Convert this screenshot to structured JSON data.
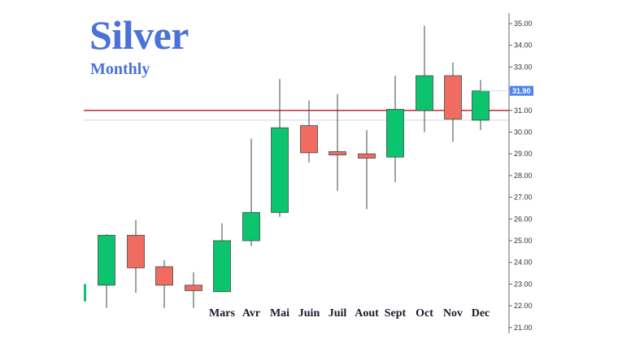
{
  "chart_data": {
    "type": "candlestick",
    "title": "Silver",
    "subtitle": "Monthly",
    "ylim": [
      21,
      35.5
    ],
    "y_ticks": [
      "21.00",
      "22.00",
      "23.00",
      "24.00",
      "25.00",
      "26.00",
      "27.00",
      "28.00",
      "29.00",
      "30.00",
      "31.00",
      "32.00",
      "33.00",
      "34.00",
      "35.00"
    ],
    "current_price_label": "31.90",
    "current_price": 31.9,
    "reference_line": 31.0,
    "up_color": "#0dc46e",
    "down_color": "#f06c60",
    "reference_color": "#c0151b",
    "tag_color": "#4d86f0",
    "candles": [
      {
        "label": "",
        "open": 22.95,
        "high": 25.3,
        "low": 21.9,
        "close": 25.25
      },
      {
        "label": "",
        "open": 25.25,
        "high": 25.95,
        "low": 22.6,
        "close": 23.75
      },
      {
        "label": "",
        "open": 23.8,
        "high": 24.1,
        "low": 21.9,
        "close": 22.95
      },
      {
        "label": "",
        "open": 22.95,
        "high": 23.55,
        "low": 21.9,
        "close": 22.7
      },
      {
        "label": "Mars",
        "open": 22.65,
        "high": 25.8,
        "low": 22.65,
        "close": 25.0
      },
      {
        "label": "Avr",
        "open": 25.0,
        "high": 29.7,
        "low": 24.75,
        "close": 26.3
      },
      {
        "label": "Mai",
        "open": 26.3,
        "high": 32.45,
        "low": 26.1,
        "close": 30.2
      },
      {
        "label": "Juin",
        "open": 30.3,
        "high": 31.45,
        "low": 28.6,
        "close": 29.05
      },
      {
        "label": "Juil",
        "open": 29.1,
        "high": 31.75,
        "low": 27.3,
        "close": 28.95
      },
      {
        "label": "Aout",
        "open": 29.0,
        "high": 30.1,
        "low": 26.45,
        "close": 28.8
      },
      {
        "label": "Sept",
        "open": 28.85,
        "high": 32.6,
        "low": 27.7,
        "close": 31.05
      },
      {
        "label": "Oct",
        "open": 31.0,
        "high": 34.9,
        "low": 30.0,
        "close": 32.6
      },
      {
        "label": "Nov",
        "open": 32.6,
        "high": 33.2,
        "low": 29.55,
        "close": 30.6
      },
      {
        "label": "Dec",
        "open": 30.55,
        "high": 32.4,
        "low": 30.1,
        "close": 31.9
      }
    ]
  }
}
